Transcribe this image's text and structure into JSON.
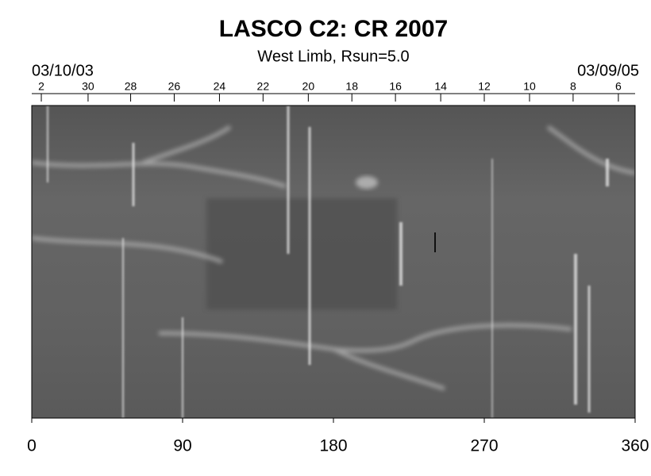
{
  "chart_data": {
    "type": "synoptic-map",
    "title": "LASCO C2: CR 2007",
    "subtitle": "West Limb, Rsun=5.0",
    "start_date": "03/10/03",
    "end_date": "03/09/05",
    "xlim": [
      0,
      360
    ],
    "xticks": [
      0,
      90,
      180,
      270,
      360
    ],
    "top_ticks": [
      {
        "value": 5.7,
        "label": "2"
      },
      {
        "value": 33.6,
        "label": "30"
      },
      {
        "value": 59,
        "label": "28"
      },
      {
        "value": 85,
        "label": "26"
      },
      {
        "value": 112,
        "label": "24"
      },
      {
        "value": 138,
        "label": "22"
      },
      {
        "value": 165,
        "label": "20"
      },
      {
        "value": 191,
        "label": "18"
      },
      {
        "value": 217,
        "label": "16"
      },
      {
        "value": 244,
        "label": "14"
      },
      {
        "value": 270,
        "label": "12"
      },
      {
        "value": 297,
        "label": "10"
      },
      {
        "value": 323,
        "label": "8"
      },
      {
        "value": 350,
        "label": "6"
      }
    ]
  }
}
